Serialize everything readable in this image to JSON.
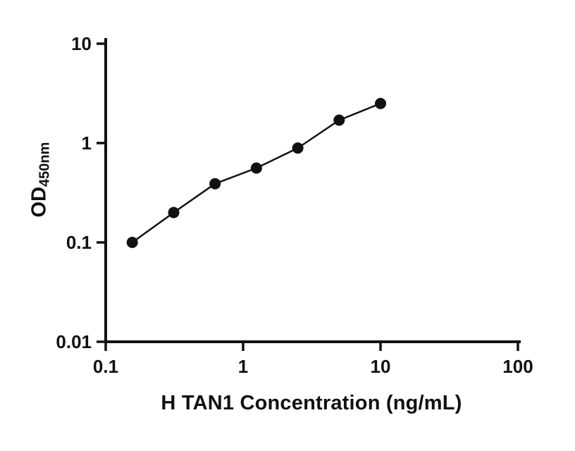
{
  "chart_data": {
    "type": "scatter",
    "title": "",
    "xlabel": "H TAN1 Concentration (ng/mL)",
    "ylabel_main": "OD",
    "ylabel_sub": "450nm",
    "x_scale": "log",
    "y_scale": "log",
    "xlim": [
      0.1,
      100
    ],
    "ylim": [
      0.01,
      10
    ],
    "x_ticks": [
      0.1,
      1,
      10,
      100
    ],
    "x_tick_labels": [
      "0.1",
      "1",
      "10",
      "100"
    ],
    "y_ticks": [
      0.01,
      0.1,
      1,
      10
    ],
    "y_tick_labels": [
      "0.01",
      "0.1",
      "1",
      "10"
    ],
    "points": [
      {
        "x": 0.156,
        "y": 0.1
      },
      {
        "x": 0.3125,
        "y": 0.2
      },
      {
        "x": 0.625,
        "y": 0.39
      },
      {
        "x": 1.25,
        "y": 0.56
      },
      {
        "x": 2.5,
        "y": 0.89
      },
      {
        "x": 5,
        "y": 1.7
      },
      {
        "x": 10,
        "y": 2.5
      }
    ],
    "line_through_points": true,
    "grid": false,
    "legend": null,
    "axis_color": "#111111",
    "line_color": "#111111",
    "marker_color": "#111111"
  }
}
